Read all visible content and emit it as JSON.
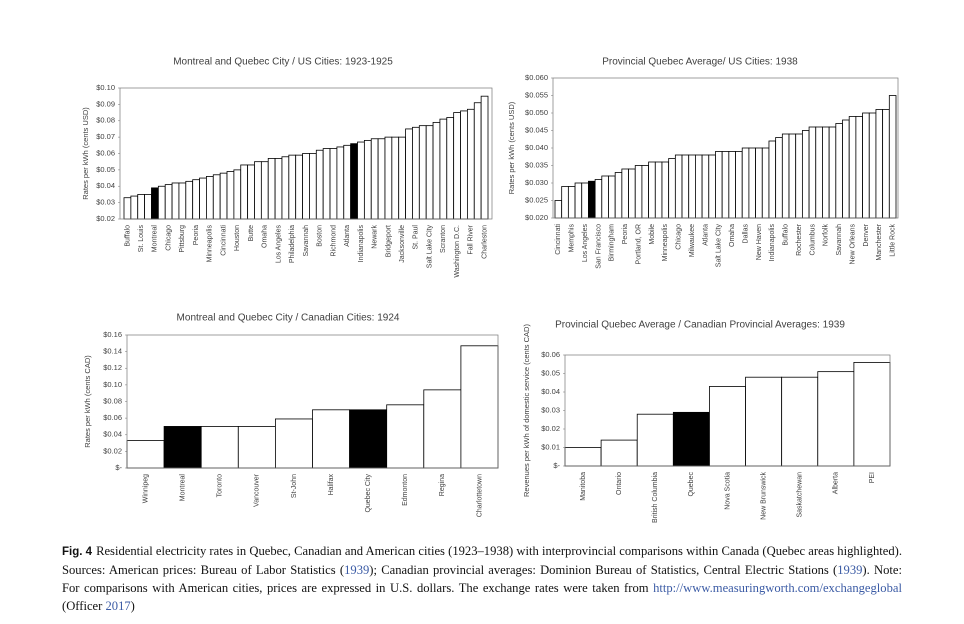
{
  "chart_data": [
    {
      "type": "bar",
      "title": "Montreal and Quebec City / US Cities: 1923-1925",
      "ylabel": "Rates per kWh (cents USD)",
      "categories": [
        "Buffalo",
        null,
        "St. Louis",
        null,
        "Montreal",
        null,
        "Chicago",
        null,
        "Pittsburg",
        null,
        "Peoria",
        null,
        "Minneapolis",
        null,
        "Cincinnati",
        null,
        "Houston",
        null,
        "Butte",
        null,
        "Omaha",
        null,
        "Los Angeles",
        null,
        "Philadelphia",
        null,
        "Savannah",
        null,
        "Boston",
        null,
        "Richmond",
        null,
        "Atlanta",
        null,
        "Indianapolis",
        null,
        "Newark",
        null,
        "Bridgeport",
        null,
        "Jacksonville",
        null,
        "St. Paul",
        null,
        "Salt Lake City",
        null,
        "Scranton",
        null,
        "Washington D.C.",
        null,
        "Fall River",
        null,
        "Charleston"
      ],
      "values": [
        0.033,
        0.034,
        0.035,
        0.035,
        0.039,
        0.04,
        0.041,
        0.042,
        0.042,
        0.043,
        0.044,
        0.045,
        0.046,
        0.047,
        0.048,
        0.049,
        0.05,
        0.053,
        0.053,
        0.055,
        0.055,
        0.057,
        0.057,
        0.058,
        0.059,
        0.059,
        0.06,
        0.06,
        0.062,
        0.063,
        0.063,
        0.064,
        0.065,
        0.066,
        0.067,
        0.068,
        0.069,
        0.069,
        0.07,
        0.07,
        0.07,
        0.075,
        0.076,
        0.077,
        0.077,
        0.079,
        0.081,
        0.082,
        0.085,
        0.086,
        0.087,
        0.091,
        0.095
      ],
      "colors": [
        "#ffffff",
        "#ffffff",
        "#ffffff",
        "#ffffff",
        "#000000",
        "#ffffff",
        "#ffffff",
        "#ffffff",
        "#ffffff",
        "#ffffff",
        "#ffffff",
        "#ffffff",
        "#ffffff",
        "#ffffff",
        "#ffffff",
        "#ffffff",
        "#ffffff",
        "#ffffff",
        "#ffffff",
        "#ffffff",
        "#ffffff",
        "#ffffff",
        "#ffffff",
        "#ffffff",
        "#ffffff",
        "#ffffff",
        "#ffffff",
        "#ffffff",
        "#ffffff",
        "#ffffff",
        "#ffffff",
        "#ffffff",
        "#ffffff",
        "#000000",
        "#ffffff",
        "#ffffff",
        "#ffffff",
        "#ffffff",
        "#ffffff",
        "#ffffff",
        "#ffffff",
        "#ffffff",
        "#ffffff",
        "#ffffff",
        "#ffffff",
        "#ffffff",
        "#ffffff",
        "#ffffff",
        "#ffffff",
        "#ffffff",
        "#ffffff",
        "#ffffff",
        "#ffffff"
      ],
      "ylim": [
        0.02,
        0.1
      ],
      "yticks": [
        {
          "value": 0.02,
          "label": "$0.02"
        },
        {
          "value": 0.03,
          "label": "$0.03"
        },
        {
          "value": 0.04,
          "label": "$0.04"
        },
        {
          "value": 0.05,
          "label": "$0.05"
        },
        {
          "value": 0.06,
          "label": "$0.06"
        },
        {
          "value": 0.07,
          "label": "$0.07"
        },
        {
          "value": 0.08,
          "label": "$0.08"
        },
        {
          "value": 0.09,
          "label": "$0.09"
        },
        {
          "value": 0.1,
          "label": "$0.10"
        }
      ]
    },
    {
      "type": "bar",
      "title": "Provincial Quebec Average/ US Cities: 1938",
      "ylabel": "Rates per kWh (cents USD)",
      "categories": [
        "Cincinnati",
        null,
        "Memphis",
        null,
        "Los Angeles",
        null,
        "San Francisco",
        null,
        "Birmingham",
        null,
        "Peoria",
        null,
        "Portland, OR",
        null,
        "Mobile",
        null,
        "Minneapolis",
        null,
        "Chicago",
        null,
        "Milwaukee",
        null,
        "Atlanta",
        null,
        "Salt Lake City",
        null,
        "Omaha",
        null,
        "Dallas",
        null,
        "New Haven",
        null,
        "Indianapolis",
        null,
        "Buffalo",
        null,
        "Rochester",
        null,
        "Columbus",
        null,
        "Norfolk",
        null,
        "Savannah",
        null,
        "New Orleans",
        null,
        "Denver",
        null,
        "Manchester",
        null,
        "Little Rock"
      ],
      "values": [
        0.025,
        0.029,
        0.029,
        0.03,
        0.03,
        0.0305,
        0.031,
        0.032,
        0.032,
        0.033,
        0.034,
        0.034,
        0.035,
        0.035,
        0.036,
        0.036,
        0.036,
        0.037,
        0.038,
        0.038,
        0.038,
        0.038,
        0.038,
        0.038,
        0.039,
        0.039,
        0.039,
        0.039,
        0.04,
        0.04,
        0.04,
        0.04,
        0.042,
        0.043,
        0.044,
        0.044,
        0.044,
        0.045,
        0.046,
        0.046,
        0.046,
        0.046,
        0.047,
        0.048,
        0.049,
        0.049,
        0.05,
        0.05,
        0.051,
        0.051,
        0.055
      ],
      "colors": [
        "#ffffff",
        "#ffffff",
        "#ffffff",
        "#ffffff",
        "#ffffff",
        "#000000",
        "#ffffff",
        "#ffffff",
        "#ffffff",
        "#ffffff",
        "#ffffff",
        "#ffffff",
        "#ffffff",
        "#ffffff",
        "#ffffff",
        "#ffffff",
        "#ffffff",
        "#ffffff",
        "#ffffff",
        "#ffffff",
        "#ffffff",
        "#ffffff",
        "#ffffff",
        "#ffffff",
        "#ffffff",
        "#ffffff",
        "#ffffff",
        "#ffffff",
        "#ffffff",
        "#ffffff",
        "#ffffff",
        "#ffffff",
        "#ffffff",
        "#ffffff",
        "#ffffff",
        "#ffffff",
        "#ffffff",
        "#ffffff",
        "#ffffff",
        "#ffffff",
        "#ffffff",
        "#ffffff",
        "#ffffff",
        "#ffffff",
        "#ffffff",
        "#ffffff",
        "#ffffff",
        "#ffffff",
        "#ffffff",
        "#ffffff",
        "#ffffff"
      ],
      "ylim": [
        0.02,
        0.06
      ],
      "yticks": [
        {
          "value": 0.02,
          "label": "$0.020"
        },
        {
          "value": 0.025,
          "label": "$0.025"
        },
        {
          "value": 0.03,
          "label": "$0.030"
        },
        {
          "value": 0.035,
          "label": "$0.035"
        },
        {
          "value": 0.04,
          "label": "$0.040"
        },
        {
          "value": 0.045,
          "label": "$0.045"
        },
        {
          "value": 0.05,
          "label": "$0.050"
        },
        {
          "value": 0.055,
          "label": "$0.055"
        },
        {
          "value": 0.06,
          "label": "$0.060"
        }
      ]
    },
    {
      "type": "bar",
      "title": "Montreal and Quebec City / Canadian Cities: 1924",
      "ylabel": "Rates per kWh (cents CAD)",
      "categories": [
        "Winnipeg",
        "Montreal",
        "Toronto",
        "Vancouver",
        "St-John",
        "Halifax",
        "Quebec City",
        "Edmonton",
        "Regina",
        "Charlottetown"
      ],
      "values": [
        0.033,
        0.05,
        0.05,
        0.05,
        0.059,
        0.07,
        0.07,
        0.076,
        0.094,
        0.147
      ],
      "colors": [
        "#ffffff",
        "#000000",
        "#ffffff",
        "#ffffff",
        "#ffffff",
        "#ffffff",
        "#000000",
        "#ffffff",
        "#ffffff",
        "#ffffff"
      ],
      "ylim": [
        0,
        0.16
      ],
      "yticks": [
        {
          "value": 0,
          "label": "$-"
        },
        {
          "value": 0.02,
          "label": "$0.02"
        },
        {
          "value": 0.04,
          "label": "$0.04"
        },
        {
          "value": 0.06,
          "label": "$0.06"
        },
        {
          "value": 0.08,
          "label": "$0.08"
        },
        {
          "value": 0.1,
          "label": "$0.10"
        },
        {
          "value": 0.12,
          "label": "$0.12"
        },
        {
          "value": 0.14,
          "label": "$0.14"
        },
        {
          "value": 0.16,
          "label": "$0.16"
        }
      ]
    },
    {
      "type": "bar",
      "title": "Provincial Quebec Average / Canadian Provincial Averages: 1939",
      "ylabel": "Revenues per kWh of domestic service (cents CAD)",
      "categories": [
        "Manitoba",
        "Ontario",
        "British Columbia",
        "Quebec",
        "Nova Scotia",
        "New Brunswick",
        "Saskatchewan",
        "Alberta",
        "PEI"
      ],
      "values": [
        0.01,
        0.014,
        0.028,
        0.029,
        0.043,
        0.048,
        0.048,
        0.051,
        0.056
      ],
      "colors": [
        "#ffffff",
        "#ffffff",
        "#ffffff",
        "#000000",
        "#ffffff",
        "#ffffff",
        "#ffffff",
        "#ffffff",
        "#ffffff"
      ],
      "ylim": [
        0,
        0.06
      ],
      "yticks": [
        {
          "value": 0,
          "label": "$-"
        },
        {
          "value": 0.01,
          "label": "$0.01"
        },
        {
          "value": 0.02,
          "label": "$0.02"
        },
        {
          "value": 0.03,
          "label": "$0.03"
        },
        {
          "value": 0.04,
          "label": "$0.04"
        },
        {
          "value": 0.05,
          "label": "$0.05"
        },
        {
          "value": 0.06,
          "label": "$0.06"
        }
      ]
    }
  ],
  "caption": {
    "label": "Fig. 4",
    "segments": [
      {
        "text": "Residential electricity rates in Quebec, Canadian and American cities (1923–1938) with interprovincial comparisons within Canada (Quebec areas highlighted). Sources: American prices: Bureau of Labor Statistics ("
      },
      {
        "text": "1939",
        "color": "#3b5ba5"
      },
      {
        "text": "); Canadian provincial averages: Dominion Bureau of Statistics, Central Electric Stations ("
      },
      {
        "text": "1939",
        "color": "#3b5ba5"
      },
      {
        "text": "). Note: For comparisons with American cities, prices are expressed in U.S. dollars. The exchange rates were taken from "
      },
      {
        "text": "http://www.measuringworth.com/exchangeglobal",
        "color": "#3b5ba5"
      },
      {
        "text": " (Officer "
      },
      {
        "text": "2017",
        "color": "#3b5ba5"
      },
      {
        "text": ")"
      }
    ]
  }
}
